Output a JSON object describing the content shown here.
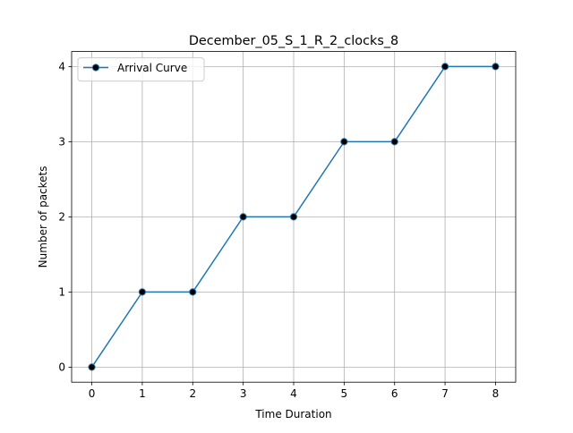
{
  "chart_data": {
    "type": "line",
    "title": "December_05_S_1_R_2_clocks_8",
    "xlabel": "Time Duration",
    "ylabel": "Number of packets",
    "x": [
      0,
      1,
      2,
      3,
      4,
      5,
      6,
      7,
      8
    ],
    "series": [
      {
        "name": "Arrival Curve",
        "values": [
          0,
          1,
          1,
          2,
          2,
          3,
          3,
          4,
          4
        ],
        "line_color": "#1f77b4",
        "marker_color": "#000000",
        "marker": "circle"
      }
    ],
    "xticks": [
      "0",
      "1",
      "2",
      "3",
      "4",
      "5",
      "6",
      "7",
      "8"
    ],
    "yticks": [
      "0",
      "1",
      "2",
      "3",
      "4"
    ],
    "xlim": [
      -0.4,
      8.4
    ],
    "ylim": [
      -0.2,
      4.2
    ],
    "grid": true,
    "legend_position": "upper-left"
  }
}
